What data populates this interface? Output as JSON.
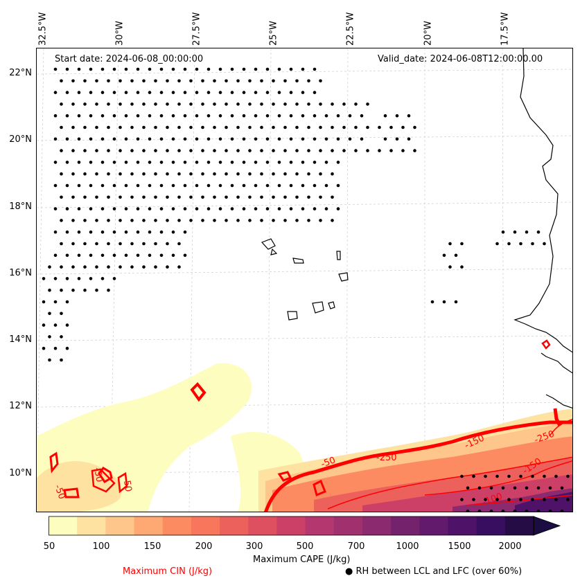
{
  "map": {
    "start_date": "Start date: 2024-06-08_00:00:00",
    "valid_date": "Valid_date: 2024-06-08T12:00:00.00",
    "lon_labels": [
      "32.5°W",
      "30°W",
      "27.5°W",
      "25°W",
      "22.5°W",
      "20°W",
      "17.5°W"
    ],
    "lat_labels": [
      "22°N",
      "20°N",
      "18°N",
      "16°N",
      "14°N",
      "12°N",
      "10°N"
    ],
    "cin_contour_labels": [
      "-50",
      "-50",
      "-50",
      "-50",
      "-150",
      "-250",
      "-150",
      "-250",
      "-100"
    ],
    "colors": {
      "cin_line": "#ff0000",
      "coastline": "#000000",
      "gridline": "#cccccc",
      "dots": "#000000"
    }
  },
  "colorbar": {
    "title": "Maximum CAPE (J/kg)",
    "tick_labels": [
      "50",
      "100",
      "150",
      "200",
      "300",
      "500",
      "700",
      "1000",
      "1500",
      "2000"
    ],
    "colors": [
      "#fcfdbf",
      "#fde2a2",
      "#fec68a",
      "#fea873",
      "#fd8b62",
      "#f8765c",
      "#ec615c",
      "#de5060",
      "#cc4068",
      "#b5376f",
      "#a1306f",
      "#8c2a6f",
      "#75226d",
      "#621a6c",
      "#4e1269",
      "#380f60",
      "#250c45"
    ]
  },
  "legend": {
    "cin_label": "Maximum CIN (J/kg)",
    "rh_label": "RH between LCL and LFC (over 60%)",
    "rh_marker": "●"
  }
}
